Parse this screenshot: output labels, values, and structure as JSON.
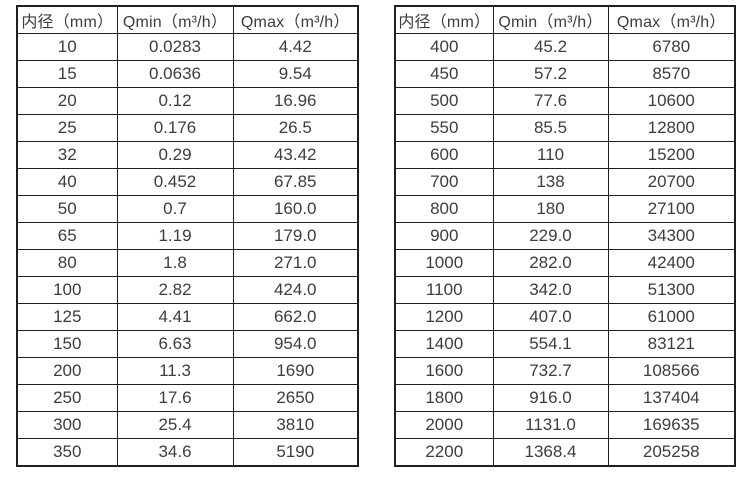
{
  "page": {
    "background_color": "#ffffff",
    "text_color": "#3d3d3d",
    "border_color": "#1f1f1f"
  },
  "tables": [
    {
      "name": "diameter-flow-table-small",
      "headers": [
        "内径（mm）",
        "Qmin（m³/h）",
        "Qmax（m³/h）"
      ],
      "rows": [
        [
          "10",
          "0.0283",
          "4.42"
        ],
        [
          "15",
          "0.0636",
          "9.54"
        ],
        [
          "20",
          "0.12",
          "16.96"
        ],
        [
          "25",
          "0.176",
          "26.5"
        ],
        [
          "32",
          "0.29",
          "43.42"
        ],
        [
          "40",
          "0.452",
          "67.85"
        ],
        [
          "50",
          "0.7",
          "160.0"
        ],
        [
          "65",
          "1.19",
          "179.0"
        ],
        [
          "80",
          "1.8",
          "271.0"
        ],
        [
          "100",
          "2.82",
          "424.0"
        ],
        [
          "125",
          "4.41",
          "662.0"
        ],
        [
          "150",
          "6.63",
          "954.0"
        ],
        [
          "200",
          "11.3",
          "1690"
        ],
        [
          "250",
          "17.6",
          "2650"
        ],
        [
          "300",
          "25.4",
          "3810"
        ],
        [
          "350",
          "34.6",
          "5190"
        ]
      ]
    },
    {
      "name": "diameter-flow-table-large",
      "headers": [
        "内径（mm）",
        "Qmin（m³/h）",
        "Qmax（m³/h）"
      ],
      "rows": [
        [
          "400",
          "45.2",
          "6780"
        ],
        [
          "450",
          "57.2",
          "8570"
        ],
        [
          "500",
          "77.6",
          "10600"
        ],
        [
          "550",
          "85.5",
          "12800"
        ],
        [
          "600",
          "110",
          "15200"
        ],
        [
          "700",
          "138",
          "20700"
        ],
        [
          "800",
          "180",
          "27100"
        ],
        [
          "900",
          "229.0",
          "34300"
        ],
        [
          "1000",
          "282.0",
          "42400"
        ],
        [
          "1100",
          "342.0",
          "51300"
        ],
        [
          "1200",
          "407.0",
          "61000"
        ],
        [
          "1400",
          "554.1",
          "83121"
        ],
        [
          "1600",
          "732.7",
          "108566"
        ],
        [
          "1800",
          "916.0",
          "137404"
        ],
        [
          "2000",
          "1131.0",
          "169635"
        ],
        [
          "2200",
          "1368.4",
          "205258"
        ]
      ]
    }
  ]
}
